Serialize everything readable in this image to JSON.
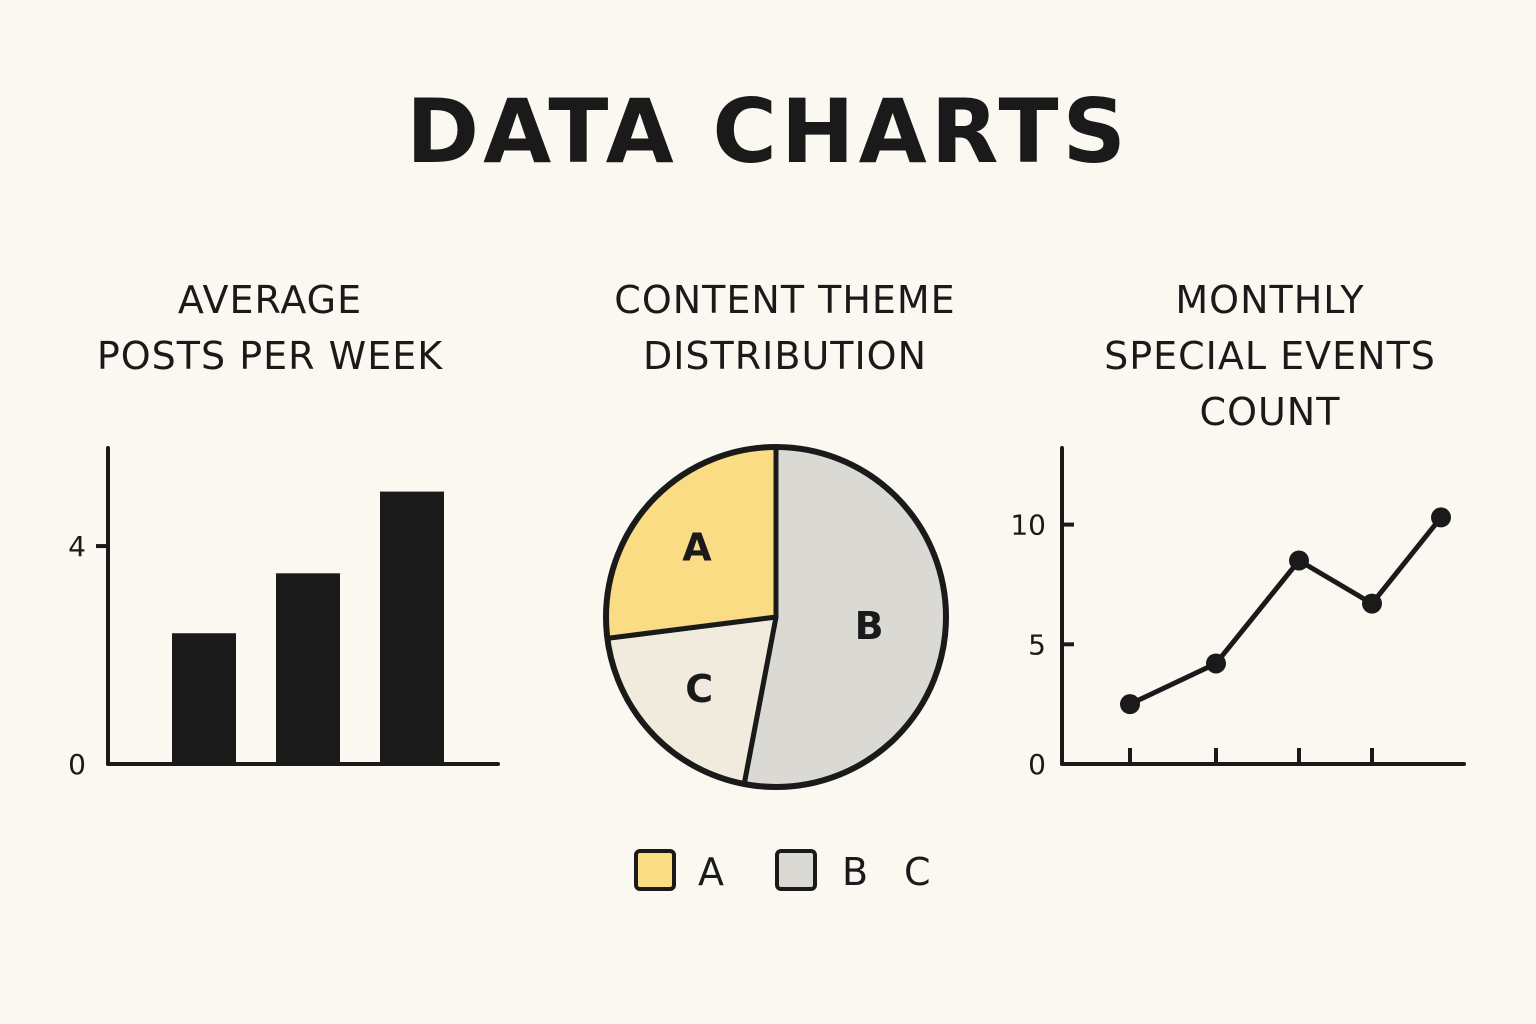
{
  "title": "DATA CHARTS",
  "colors": {
    "background": "#fbf8f1",
    "ink": "#1a1a1a",
    "slice_a": "#f9dc83",
    "slice_b": "#dbd9d3",
    "slice_c": "#f0ebdc"
  },
  "chart_data": [
    {
      "type": "bar",
      "title_lines": [
        "AVERAGE",
        "POSTS PER WEEK"
      ],
      "categories": [
        "",
        "",
        ""
      ],
      "values": [
        2.4,
        3.5,
        5.0
      ],
      "yticks": [
        0,
        4
      ],
      "ylim": [
        0,
        5.8
      ],
      "grid": false
    },
    {
      "type": "pie",
      "title_lines": [
        "CONTENT THEME",
        "DISTRIBUTION"
      ],
      "labels": [
        "A",
        "B",
        "C"
      ],
      "values": [
        27,
        53,
        20
      ],
      "legend": [
        "A",
        "B",
        "C"
      ],
      "legend_position": "bottom"
    },
    {
      "type": "line",
      "title_lines": [
        "MONTHLY",
        "SPECIAL EVENTS",
        "COUNT"
      ],
      "x": [
        1,
        2,
        3,
        4,
        5
      ],
      "values": [
        2.5,
        4.2,
        8.5,
        6.7,
        10.3
      ],
      "yticks": [
        0,
        5,
        10
      ],
      "ylim": [
        0,
        13.2
      ],
      "grid": false
    }
  ]
}
